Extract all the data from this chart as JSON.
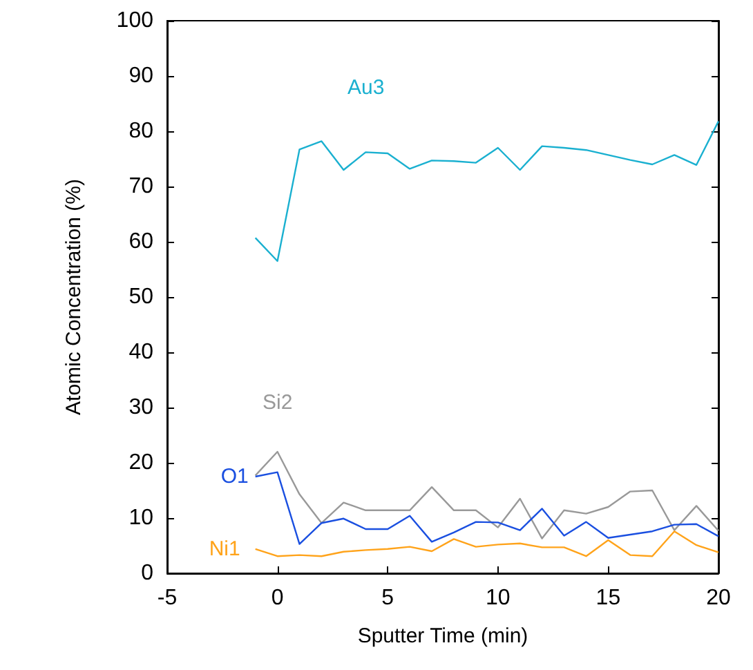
{
  "chart_data": {
    "type": "line",
    "xlabel": "Sputter Time (min)",
    "ylabel": "Atomic Concentration (%)",
    "x": [
      -1,
      0,
      1,
      2,
      3,
      4,
      5,
      6,
      7,
      8,
      9,
      10,
      11,
      12,
      13,
      14,
      15,
      16,
      17,
      18,
      19,
      20
    ],
    "series": [
      {
        "name": "Au3",
        "color": "#1ab0d0",
        "values": [
          60.7,
          56.5,
          76.7,
          78.2,
          73,
          76.2,
          76,
          73.2,
          74.7,
          74.6,
          74.3,
          77,
          73,
          77.3,
          77,
          76.6,
          75.7,
          74.8,
          74,
          75.7,
          73.9,
          81.8
        ]
      },
      {
        "name": "Si2",
        "color": "#999999",
        "values": [
          17.7,
          22,
          14.3,
          9.1,
          12.8,
          11.4,
          11.4,
          11.4,
          15.6,
          11.4,
          11.4,
          8.3,
          13.5,
          6.3,
          11.4,
          10.8,
          12,
          14.8,
          15,
          7.8,
          12.2,
          7.7
        ]
      },
      {
        "name": "O1",
        "color": "#1a4fe0",
        "values": [
          17.5,
          18.3,
          5.3,
          9.1,
          9.9,
          8,
          8,
          10.4,
          5.7,
          7.4,
          9.3,
          9.2,
          7.8,
          11.7,
          6.8,
          9.3,
          6.4,
          7,
          7.6,
          8.8,
          8.9,
          6.7
        ]
      },
      {
        "name": "Ni1",
        "color": "#ffa31a",
        "values": [
          4.4,
          3.1,
          3.3,
          3.1,
          3.9,
          4.2,
          4.4,
          4.8,
          4,
          6.2,
          4.8,
          5.2,
          5.4,
          4.7,
          4.7,
          3.1,
          6,
          3.3,
          3.1,
          7.6,
          5.1,
          3.8
        ]
      }
    ],
    "xlim": [
      -5,
      20
    ],
    "xticks": [
      -5,
      0,
      5,
      10,
      15,
      20
    ],
    "ylim": [
      0,
      100
    ],
    "yticks": [
      0,
      10,
      20,
      30,
      40,
      50,
      60,
      70,
      80,
      90,
      100
    ],
    "grid": false,
    "legend": false,
    "marker": "none",
    "line_style": "solid"
  }
}
